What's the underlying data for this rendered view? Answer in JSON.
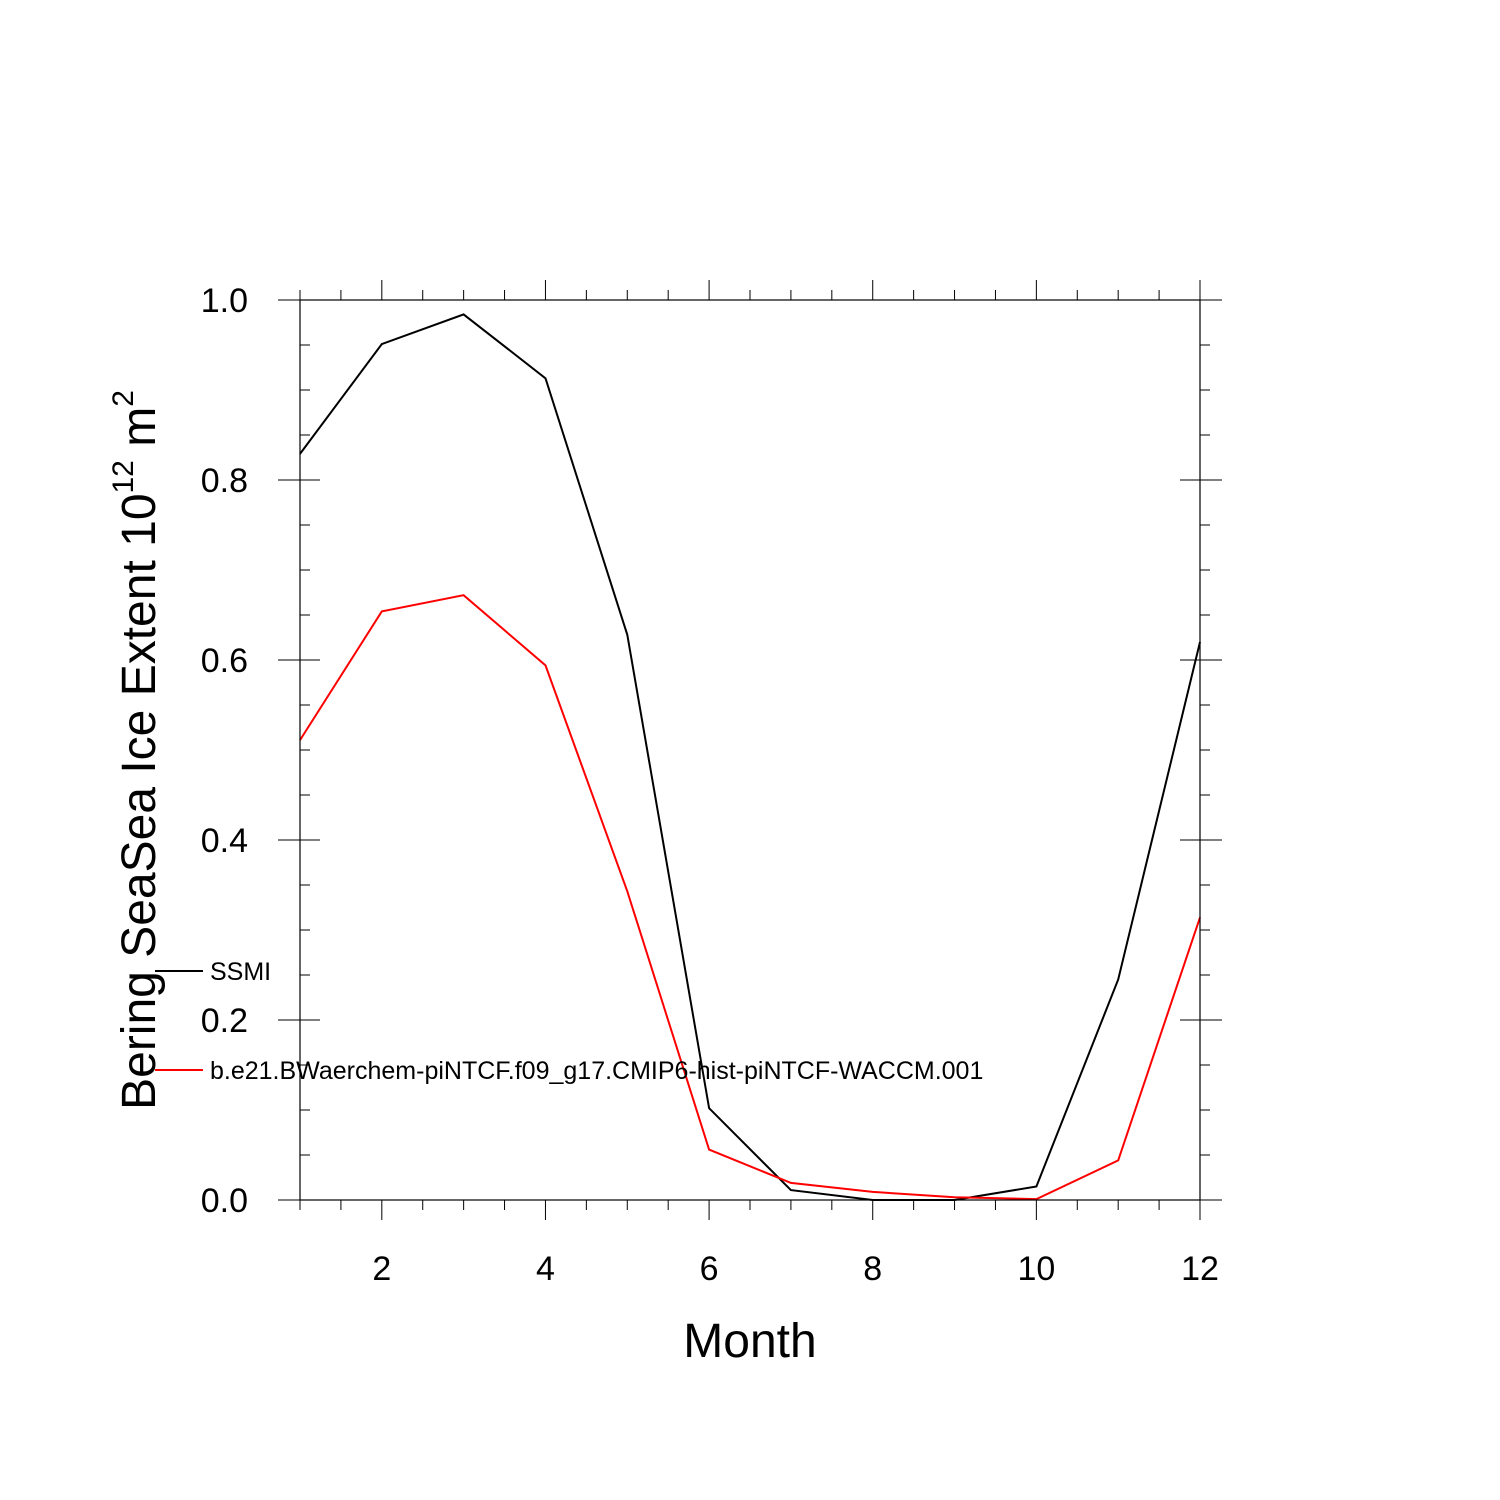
{
  "chart_data": {
    "type": "line",
    "title": "",
    "xlabel": "Month",
    "ylabel_main": "Bering SeaSea Ice Extent 10",
    "ylabel_exp": "12",
    "ylabel_unit": " m",
    "ylabel_unit_exp": "2",
    "xlim": [
      1,
      12
    ],
    "ylim": [
      0,
      1.0
    ],
    "x_ticks": [
      2,
      4,
      6,
      8,
      10,
      12
    ],
    "x_tick_labels": [
      "2",
      "4",
      "6",
      "8",
      "10",
      "12"
    ],
    "y_ticks": [
      0.0,
      0.2,
      0.4,
      0.6,
      0.8,
      1.0
    ],
    "y_tick_labels": [
      "0.0",
      "0.2",
      "0.4",
      "0.6",
      "0.8",
      "1.0"
    ],
    "grid": false,
    "legend_position": "left-center",
    "series": [
      {
        "name": "SSMI",
        "color": "#000000",
        "x": [
          1,
          2,
          3,
          4,
          5,
          6,
          7,
          8,
          9,
          10,
          11,
          12
        ],
        "values": [
          0.829,
          0.951,
          0.984,
          0.913,
          0.628,
          0.102,
          0.011,
          0.0,
          0.0,
          0.015,
          0.245,
          0.62
        ]
      },
      {
        "name": "b.e21.BWaerchem-piNTCF.f09_g17.CMIP6-hist-piNTCF-WACCM.001",
        "color": "#ff0000",
        "x": [
          1,
          2,
          3,
          4,
          5,
          6,
          7,
          8,
          9,
          10,
          11,
          12
        ],
        "values": [
          0.511,
          0.654,
          0.672,
          0.594,
          0.343,
          0.056,
          0.019,
          0.009,
          0.003,
          0.001,
          0.044,
          0.314
        ]
      }
    ]
  }
}
